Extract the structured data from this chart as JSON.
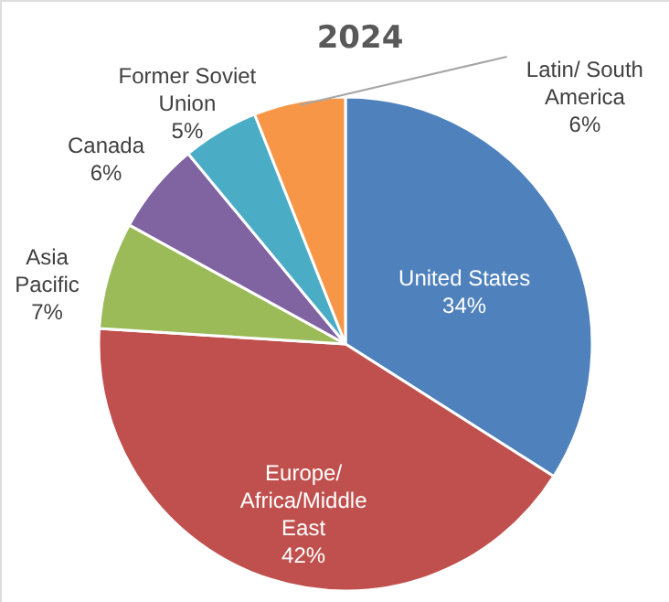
{
  "chart_data": {
    "type": "pie",
    "title": "2024",
    "categories": [
      "United States",
      "Europe/Africa/Middle East",
      "Asia Pacific",
      "Canada",
      "Former Soviet Union",
      "Latin/ South America"
    ],
    "values": [
      34,
      42,
      7,
      6,
      5,
      6
    ],
    "value_labels": [
      "34%",
      "42%",
      "7%",
      "6%",
      "5%",
      "6%"
    ],
    "colors": [
      "#4f81bd",
      "#c0504d",
      "#9bbb59",
      "#8064a2",
      "#4bacc6",
      "#f79646"
    ]
  }
}
